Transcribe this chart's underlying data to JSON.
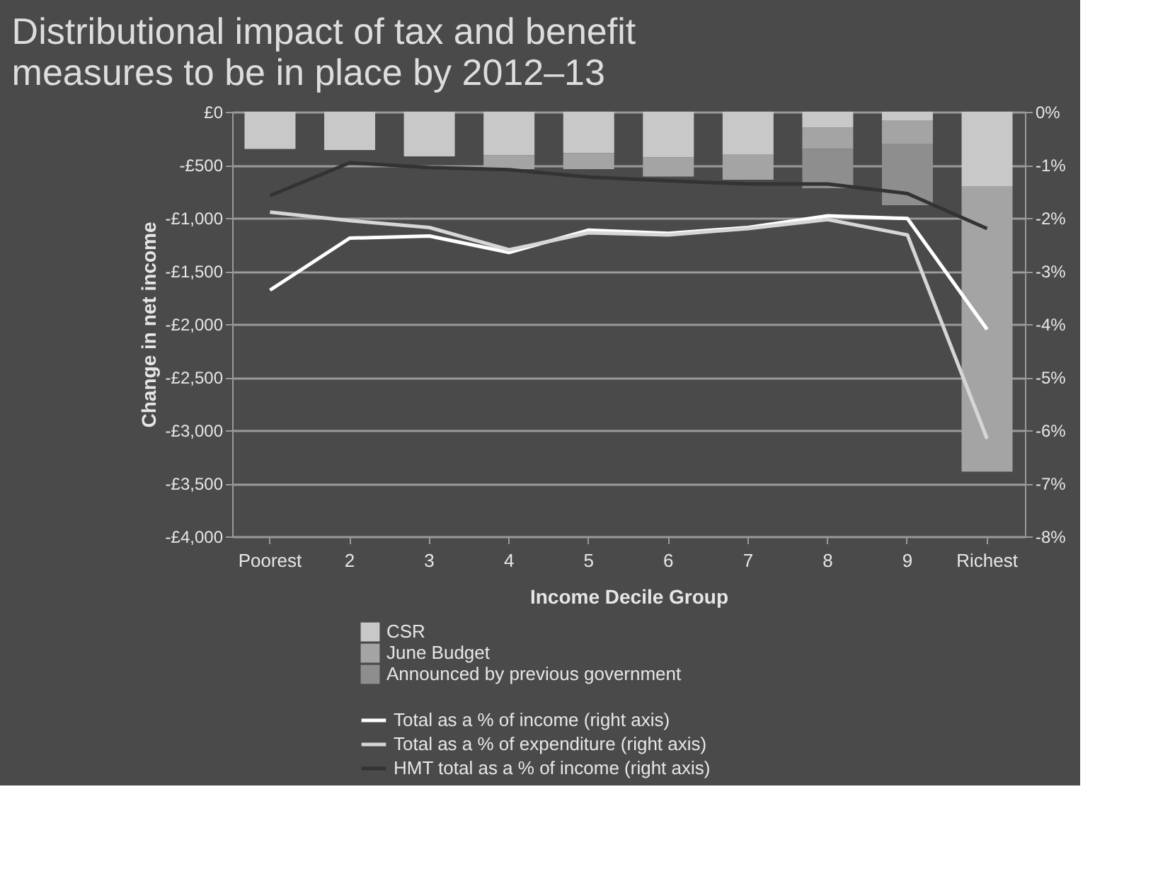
{
  "chart_data": {
    "type": "bar",
    "stacked": true,
    "title": "Distributional impact of tax and benefit measures to be in place by 2012–13",
    "xlabel": "Income Decile Group",
    "ylabel": "Change in net income",
    "categories": [
      "Poorest",
      "2",
      "3",
      "4",
      "5",
      "6",
      "7",
      "8",
      "9",
      "Richest"
    ],
    "series": [
      {
        "name": "CSR",
        "color": "#c8c8c8",
        "values": [
          -350,
          -360,
          -420,
          -410,
          -390,
          -430,
          -400,
          -150,
          -80,
          -700
        ]
      },
      {
        "name": "June Budget",
        "color": "#a4a4a4",
        "values": [
          0,
          0,
          0,
          -130,
          -150,
          -180,
          -240,
          -200,
          -220,
          -2690
        ]
      },
      {
        "name": "Announced by previous government",
        "color": "#8e8e8e",
        "values": [
          0,
          0,
          0,
          0,
          0,
          0,
          0,
          -370,
          -580,
          0
        ]
      },
      {
        "name": "Total as a % of income (right axis)",
        "type": "line",
        "axis": "y2",
        "color": "#ffffff",
        "values": [
          -3.36,
          -2.38,
          -2.34,
          -2.65,
          -2.23,
          -2.29,
          -2.18,
          -1.96,
          -2.01,
          -4.1
        ]
      },
      {
        "name": "Total as a % of expenditure (right axis)",
        "type": "line",
        "axis": "y2",
        "color": "#d6d6d6",
        "values": [
          -1.89,
          -2.05,
          -2.18,
          -2.6,
          -2.28,
          -2.32,
          -2.2,
          -2.03,
          -2.32,
          -6.16
        ]
      },
      {
        "name": "HMT total as a % of income (right axis)",
        "type": "line",
        "axis": "y2",
        "color": "#333333",
        "values": [
          -1.58,
          -0.96,
          -1.05,
          -1.09,
          -1.23,
          -1.3,
          -1.36,
          -1.36,
          -1.54,
          -2.2
        ]
      }
    ],
    "ylim": [
      -4000,
      0
    ],
    "yticks": [
      {
        "value": 0,
        "label": "£0"
      },
      {
        "value": -500,
        "label": "-£500"
      },
      {
        "value": -1000,
        "label": "-£1,000"
      },
      {
        "value": -1500,
        "label": "-£1,500"
      },
      {
        "value": -2000,
        "label": "-£2,000"
      },
      {
        "value": -2500,
        "label": "-£2,500"
      },
      {
        "value": -3000,
        "label": "-£3,000"
      },
      {
        "value": -3500,
        "label": "-£3,500"
      },
      {
        "value": -4000,
        "label": "-£4,000"
      }
    ],
    "y2lim": [
      -8,
      0
    ],
    "y2ticks": [
      {
        "value": 0,
        "label": "0%"
      },
      {
        "value": -1,
        "label": "-1%"
      },
      {
        "value": -2,
        "label": "-2%"
      },
      {
        "value": -3,
        "label": "-3%"
      },
      {
        "value": -4,
        "label": "-4%"
      },
      {
        "value": -5,
        "label": "-5%"
      },
      {
        "value": -6,
        "label": "-6%"
      },
      {
        "value": -7,
        "label": "-7%"
      },
      {
        "value": -8,
        "label": "-8%"
      }
    ],
    "grid": "y",
    "legend": "bottom",
    "line_style": "solid",
    "marker": "none"
  }
}
